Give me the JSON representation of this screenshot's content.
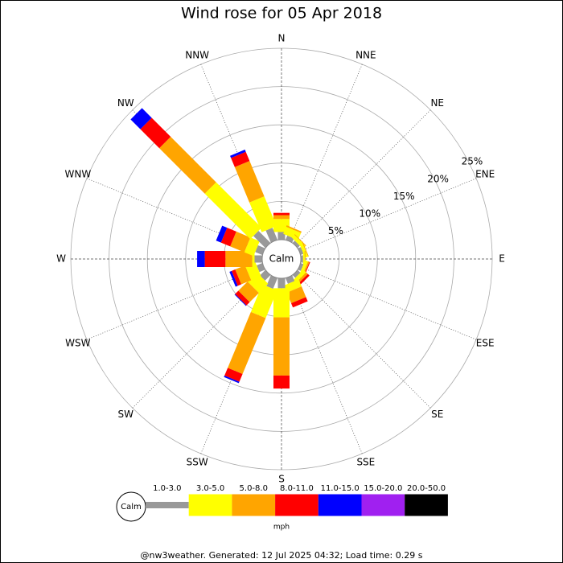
{
  "chart_data": {
    "type": "windrose",
    "title": "Wind rose for 05 Apr 2018",
    "categories": [
      "N",
      "NNE",
      "NE",
      "ENE",
      "E",
      "ESE",
      "SE",
      "SSE",
      "S",
      "SSW",
      "SW",
      "WSW",
      "W",
      "WNW",
      "NW",
      "NNW"
    ],
    "series": [
      {
        "name": "1.0-3.0",
        "color": "#999999",
        "values": [
          1.0,
          0.6,
          0.4,
          0.4,
          0.3,
          0.4,
          0.5,
          0.8,
          1.3,
          1.5,
          1.0,
          0.8,
          1.0,
          1.0,
          2.2,
          1.7
        ]
      },
      {
        "name": "3.0-5.0",
        "color": "#ffff00",
        "values": [
          1.7,
          1.0,
          0.5,
          0.4,
          0.2,
          0.4,
          0.5,
          1.0,
          3.8,
          3.9,
          1.7,
          1.4,
          0.3,
          1.3,
          8.4,
          4.2
        ]
      },
      {
        "name": "5.0-8.0",
        "color": "#ffa500",
        "values": [
          0.5,
          0.2,
          0.1,
          0.1,
          0.1,
          0.2,
          0.3,
          1.5,
          7.6,
          7.9,
          1.7,
          1.4,
          3.5,
          2.0,
          8.4,
          5.0
        ]
      },
      {
        "name": "8.0-11.0",
        "color": "#ff0000",
        "values": [
          0.3,
          0,
          0,
          0,
          0,
          0.1,
          0.3,
          0.6,
          1.7,
          1.1,
          0.6,
          0.5,
          2.7,
          1.3,
          3.5,
          1.3
        ]
      },
      {
        "name": "11.0-15.0",
        "color": "#0000ff",
        "values": [
          0,
          0,
          0,
          0,
          0,
          0,
          0,
          0,
          0,
          0.2,
          0.1,
          0.3,
          1.0,
          0.7,
          1.8,
          0.3
        ]
      },
      {
        "name": "15.0-20.0",
        "color": "#a020f0",
        "values": [
          0,
          0,
          0,
          0,
          0,
          0,
          0,
          0,
          0,
          0,
          0,
          0,
          0,
          0,
          0,
          0
        ]
      },
      {
        "name": "20.0-50.0",
        "color": "#000000",
        "values": [
          0,
          0,
          0,
          0,
          0,
          0,
          0,
          0,
          0,
          0,
          0,
          0,
          0,
          0,
          0,
          0
        ]
      }
    ],
    "rlim": [
      0,
      25
    ],
    "rticks": [
      {
        "value": 5,
        "label": "5%"
      },
      {
        "value": 10,
        "label": "10%"
      },
      {
        "value": 15,
        "label": "15%"
      },
      {
        "value": 20,
        "label": "20%"
      },
      {
        "value": 25,
        "label": "25%"
      }
    ],
    "calm_label": "Calm",
    "legend_unit": "mph",
    "footer": "@nw3weather.  Generated: 12 Jul 2025 04:32; Load time: 0.29 s"
  }
}
